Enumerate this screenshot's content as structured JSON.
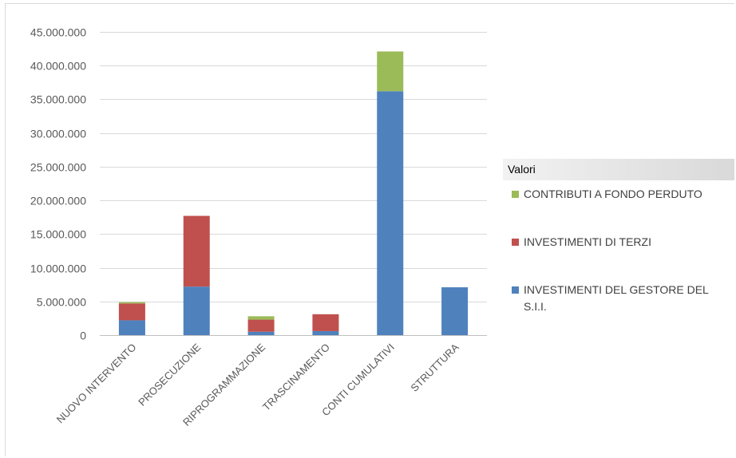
{
  "chart_data": {
    "type": "bar",
    "stacked": true,
    "categories": [
      "NUOVO INTERVENTO",
      "PROSECUZIONE",
      "RIPROGRAMMAZIONE",
      "TRASCINAMENTO",
      "CONTI CUMULATIVI",
      "STRUTTURA"
    ],
    "series": [
      {
        "name": "INVESTIMENTI DEL GESTORE DEL S.I.I.",
        "color": "#4f81bd",
        "values": [
          2200000,
          7200000,
          500000,
          600000,
          36200000,
          7100000
        ]
      },
      {
        "name": "INVESTIMENTI DI TERZI",
        "color": "#c0504d",
        "values": [
          2500000,
          10500000,
          1800000,
          2500000,
          0,
          0
        ]
      },
      {
        "name": "CONTRIBUTI A FONDO PERDUTO",
        "color": "#9bbb59",
        "values": [
          200000,
          0,
          500000,
          0,
          5900000,
          0
        ]
      }
    ],
    "legend_order": [
      "CONTRIBUTI A FONDO PERDUTO",
      "INVESTIMENTI DI TERZI",
      "INVESTIMENTI DEL GESTORE DEL S.I.I."
    ],
    "ylim": [
      0,
      45000000
    ],
    "ytick_labels": [
      "0",
      "5.000.000",
      "10.000.000",
      "15.000.000",
      "20.000.000",
      "25.000.000",
      "30.000.000",
      "35.000.000",
      "40.000.000",
      "45.000.000"
    ],
    "grid": true,
    "legend_title": "Valori",
    "legend_position": "right"
  }
}
